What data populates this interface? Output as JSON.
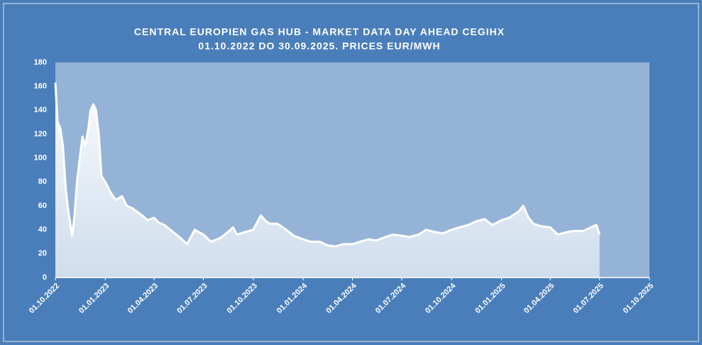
{
  "chart_data": {
    "type": "area",
    "title": "CENTRAL EUROPIEN GAS HUB - MARKET DATA DAY AHEAD CEGIHX",
    "subtitle": "01.10.2022 DO 30.09.2025. PRICES EUR/MWH",
    "x": [
      "01.10.2022",
      "05.10.2022",
      "10.10.2022",
      "15.10.2022",
      "20.10.2022",
      "25.10.2022",
      "01.11.2022",
      "05.11.2022",
      "10.11.2022",
      "15.11.2022",
      "20.11.2022",
      "25.11.2022",
      "01.12.2022",
      "05.12.2022",
      "10.12.2022",
      "15.12.2022",
      "20.12.2022",
      "25.12.2022",
      "01.01.2023",
      "10.01.2023",
      "20.01.2023",
      "01.02.2023",
      "10.02.2023",
      "20.02.2023",
      "01.03.2023",
      "10.03.2023",
      "20.03.2023",
      "01.04.2023",
      "10.04.2023",
      "20.04.2023",
      "01.05.2023",
      "15.05.2023",
      "01.06.2023",
      "15.06.2023",
      "01.07.2023",
      "15.07.2023",
      "01.08.2023",
      "15.08.2023",
      "25.08.2023",
      "01.09.2023",
      "15.09.2023",
      "01.10.2023",
      "15.10.2023",
      "25.10.2023",
      "01.11.2023",
      "15.11.2023",
      "01.12.2023",
      "15.12.2023",
      "01.01.2024",
      "15.01.2024",
      "01.02.2024",
      "15.02.2024",
      "01.03.2024",
      "15.03.2024",
      "01.04.2024",
      "15.04.2024",
      "01.05.2024",
      "15.05.2024",
      "01.06.2024",
      "15.06.2024",
      "01.07.2024",
      "15.07.2024",
      "01.08.2024",
      "15.08.2024",
      "01.09.2024",
      "15.09.2024",
      "01.10.2024",
      "15.10.2024",
      "01.11.2024",
      "15.11.2024",
      "01.12.2024",
      "15.12.2024",
      "01.01.2025",
      "15.01.2025",
      "01.02.2025",
      "10.02.2025",
      "20.02.2025",
      "01.03.2025",
      "15.03.2025",
      "01.04.2025",
      "15.04.2025",
      "01.05.2025",
      "15.05.2025",
      "01.06.2025",
      "15.06.2025",
      "25.06.2025",
      "01.07.2025"
    ],
    "values": [
      163,
      130,
      125,
      110,
      75,
      55,
      35,
      50,
      80,
      100,
      118,
      110,
      125,
      140,
      145,
      140,
      120,
      85,
      80,
      72,
      65,
      68,
      60,
      58,
      55,
      52,
      48,
      50,
      46,
      44,
      40,
      35,
      28,
      40,
      36,
      30,
      33,
      38,
      42,
      36,
      38,
      40,
      52,
      47,
      45,
      45,
      40,
      35,
      32,
      30,
      30,
      27,
      26,
      28,
      28,
      30,
      32,
      31,
      34,
      36,
      35,
      34,
      36,
      40,
      38,
      37,
      40,
      42,
      44,
      47,
      49,
      44,
      48,
      50,
      55,
      60,
      50,
      45,
      43,
      42,
      36,
      38,
      39,
      39,
      42,
      44,
      36
    ],
    "color": "#ffffff",
    "xlim": [
      "01.10.2022",
      "01.10.2025"
    ],
    "xticks": [
      "01.10.2022",
      "01.01.2023",
      "01.04.2023",
      "01.07.2023",
      "01.10.2023",
      "01.01.2024",
      "01.04.2024",
      "01.07.2024",
      "01.10.2024",
      "01.01.2025",
      "01.04.2025",
      "01.07.2025",
      "01.10.2025"
    ],
    "ylim": [
      0,
      180
    ],
    "yticks": [
      0,
      20,
      40,
      60,
      80,
      100,
      120,
      140,
      160,
      180
    ]
  }
}
